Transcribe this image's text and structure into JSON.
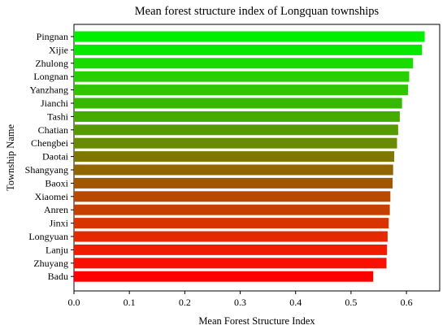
{
  "chart_data": {
    "type": "bar",
    "orientation": "horizontal",
    "title": "Mean forest structure index of Longquan townships",
    "xlabel": "Mean Forest Structure Index",
    "ylabel": "Township Name",
    "xlim": [
      0,
      0.66
    ],
    "xticks": [
      "0.0",
      "0.1",
      "0.2",
      "0.3",
      "0.4",
      "0.5",
      "0.6"
    ],
    "grid": false,
    "categories": [
      "Pingnan",
      "Xijie",
      "Zhulong",
      "Longnan",
      "Yanzhang",
      "Jianchi",
      "Tashi",
      "Chatian",
      "Chengbei",
      "Daotai",
      "Shangyang",
      "Baoxi",
      "Xiaomei",
      "Anren",
      "Jinxi",
      "Longyuan",
      "Lanju",
      "Zhuyang",
      "Badu"
    ],
    "values": [
      0.633,
      0.628,
      0.612,
      0.605,
      0.603,
      0.592,
      0.588,
      0.585,
      0.583,
      0.578,
      0.576,
      0.575,
      0.571,
      0.57,
      0.568,
      0.566,
      0.565,
      0.564,
      0.54
    ],
    "colors": [
      "#00ee00",
      "#06e800",
      "#1adb00",
      "#27d000",
      "#2fc600",
      "#37b800",
      "#45ab00",
      "#579a00",
      "#6a8b00",
      "#7e7800",
      "#926500",
      "#a45500",
      "#b74a00",
      "#c54000",
      "#d63500",
      "#e52800",
      "#f01c00",
      "#f81000",
      "#ff0000"
    ]
  }
}
